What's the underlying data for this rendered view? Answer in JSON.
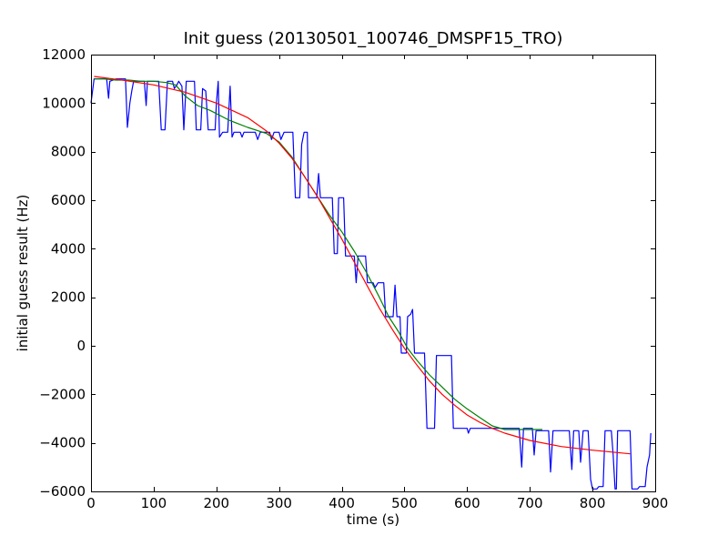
{
  "chart_data": {
    "type": "line",
    "title": "Init guess (20130501_100746_DMSPF15_TRO)",
    "xlabel": "time (s)",
    "ylabel": "initial guess result (Hz)",
    "xlim": [
      0,
      900
    ],
    "ylim": [
      -6000,
      12000
    ],
    "xticks": [
      0,
      100,
      200,
      300,
      400,
      500,
      600,
      700,
      800,
      900
    ],
    "yticks": [
      -6000,
      -4000,
      -2000,
      0,
      2000,
      4000,
      6000,
      8000,
      10000,
      12000
    ],
    "grid": false,
    "series": [
      {
        "color": "#0000ff",
        "points": [
          [
            0,
            10000
          ],
          [
            5,
            11000
          ],
          [
            25,
            11000
          ],
          [
            28,
            10200
          ],
          [
            30,
            10900
          ],
          [
            40,
            11000
          ],
          [
            55,
            11000
          ],
          [
            58,
            9000
          ],
          [
            62,
            10000
          ],
          [
            65,
            10500
          ],
          [
            68,
            10900
          ],
          [
            85,
            10900
          ],
          [
            88,
            9900
          ],
          [
            90,
            10900
          ],
          [
            108,
            10900
          ],
          [
            112,
            8900
          ],
          [
            118,
            8900
          ],
          [
            122,
            10900
          ],
          [
            130,
            10900
          ],
          [
            133,
            10600
          ],
          [
            138,
            10800
          ],
          [
            140,
            10900
          ],
          [
            145,
            10700
          ],
          [
            148,
            8900
          ],
          [
            152,
            10900
          ],
          [
            165,
            10900
          ],
          [
            168,
            8900
          ],
          [
            175,
            8900
          ],
          [
            178,
            10600
          ],
          [
            183,
            10500
          ],
          [
            187,
            8900
          ],
          [
            198,
            8900
          ],
          [
            200,
            10000
          ],
          [
            203,
            10900
          ],
          [
            205,
            8600
          ],
          [
            210,
            8800
          ],
          [
            218,
            8800
          ],
          [
            222,
            10700
          ],
          [
            225,
            8600
          ],
          [
            228,
            8800
          ],
          [
            238,
            8800
          ],
          [
            241,
            8600
          ],
          [
            244,
            8800
          ],
          [
            262,
            8800
          ],
          [
            266,
            8500
          ],
          [
            270,
            8800
          ],
          [
            285,
            8800
          ],
          [
            288,
            8500
          ],
          [
            292,
            8800
          ],
          [
            300,
            8800
          ],
          [
            303,
            8500
          ],
          [
            308,
            8800
          ],
          [
            322,
            8800
          ],
          [
            326,
            6100
          ],
          [
            333,
            6100
          ],
          [
            336,
            8300
          ],
          [
            340,
            8800
          ],
          [
            345,
            8800
          ],
          [
            347,
            6100
          ],
          [
            360,
            6100
          ],
          [
            363,
            7100
          ],
          [
            366,
            6100
          ],
          [
            380,
            6100
          ],
          [
            385,
            6100
          ],
          [
            388,
            3800
          ],
          [
            393,
            3800
          ],
          [
            395,
            6100
          ],
          [
            403,
            6100
          ],
          [
            406,
            3700
          ],
          [
            420,
            3700
          ],
          [
            423,
            2600
          ],
          [
            426,
            3700
          ],
          [
            438,
            3700
          ],
          [
            441,
            2600
          ],
          [
            450,
            2600
          ],
          [
            453,
            2400
          ],
          [
            458,
            2600
          ],
          [
            467,
            2600
          ],
          [
            470,
            1200
          ],
          [
            482,
            1200
          ],
          [
            485,
            2500
          ],
          [
            488,
            1200
          ],
          [
            493,
            1200
          ],
          [
            495,
            -300
          ],
          [
            503,
            -300
          ],
          [
            505,
            1200
          ],
          [
            510,
            1300
          ],
          [
            513,
            1500
          ],
          [
            516,
            -300
          ],
          [
            532,
            -300
          ],
          [
            536,
            -3400
          ],
          [
            548,
            -3400
          ],
          [
            551,
            -400
          ],
          [
            575,
            -400
          ],
          [
            578,
            -3400
          ],
          [
            600,
            -3400
          ],
          [
            602,
            -3600
          ],
          [
            605,
            -3400
          ],
          [
            683,
            -3400
          ],
          [
            687,
            -5000
          ],
          [
            690,
            -3400
          ],
          [
            704,
            -3400
          ],
          [
            707,
            -4500
          ],
          [
            710,
            -3500
          ],
          [
            730,
            -3500
          ],
          [
            733,
            -5200
          ],
          [
            737,
            -3500
          ],
          [
            763,
            -3500
          ],
          [
            767,
            -5100
          ],
          [
            770,
            -3500
          ],
          [
            778,
            -3500
          ],
          [
            781,
            -4800
          ],
          [
            785,
            -3500
          ],
          [
            793,
            -3500
          ],
          [
            797,
            -5500
          ],
          [
            800,
            -5900
          ],
          [
            807,
            -5900
          ],
          [
            810,
            -5800
          ],
          [
            817,
            -5800
          ],
          [
            820,
            -3500
          ],
          [
            830,
            -3500
          ],
          [
            833,
            -4500
          ],
          [
            836,
            -5900
          ],
          [
            838,
            -5900
          ],
          [
            840,
            -3500
          ],
          [
            860,
            -3500
          ],
          [
            863,
            -5900
          ],
          [
            872,
            -5900
          ],
          [
            875,
            -5800
          ],
          [
            884,
            -5800
          ],
          [
            887,
            -5000
          ],
          [
            891,
            -4500
          ],
          [
            893,
            -3600
          ]
        ]
      },
      {
        "color": "#008000",
        "points": [
          [
            5,
            11000
          ],
          [
            20,
            11000
          ],
          [
            40,
            10950
          ],
          [
            60,
            10950
          ],
          [
            80,
            10900
          ],
          [
            100,
            10900
          ],
          [
            120,
            10850
          ],
          [
            135,
            10750
          ],
          [
            150,
            10300
          ],
          [
            170,
            9900
          ],
          [
            190,
            9700
          ],
          [
            220,
            9300
          ],
          [
            250,
            9000
          ],
          [
            280,
            8750
          ],
          [
            300,
            8400
          ],
          [
            320,
            7800
          ],
          [
            340,
            7000
          ],
          [
            360,
            6200
          ],
          [
            380,
            5400
          ],
          [
            400,
            4700
          ],
          [
            420,
            3900
          ],
          [
            440,
            3000
          ],
          [
            460,
            2000
          ],
          [
            475,
            1200
          ],
          [
            490,
            600
          ],
          [
            505,
            -100
          ],
          [
            520,
            -600
          ],
          [
            540,
            -1200
          ],
          [
            560,
            -1700
          ],
          [
            580,
            -2200
          ],
          [
            600,
            -2600
          ],
          [
            620,
            -2950
          ],
          [
            640,
            -3300
          ],
          [
            660,
            -3450
          ],
          [
            720,
            -3450
          ]
        ]
      },
      {
        "color": "#ff0000",
        "points": [
          [
            5,
            11100
          ],
          [
            50,
            10950
          ],
          [
            100,
            10750
          ],
          [
            150,
            10450
          ],
          [
            200,
            10000
          ],
          [
            250,
            9400
          ],
          [
            280,
            8850
          ],
          [
            300,
            8350
          ],
          [
            320,
            7750
          ],
          [
            340,
            7000
          ],
          [
            360,
            6200
          ],
          [
            380,
            5300
          ],
          [
            400,
            4400
          ],
          [
            420,
            3450
          ],
          [
            440,
            2500
          ],
          [
            460,
            1550
          ],
          [
            480,
            700
          ],
          [
            500,
            -100
          ],
          [
            520,
            -800
          ],
          [
            540,
            -1450
          ],
          [
            560,
            -2000
          ],
          [
            580,
            -2450
          ],
          [
            600,
            -2850
          ],
          [
            620,
            -3150
          ],
          [
            640,
            -3400
          ],
          [
            660,
            -3600
          ],
          [
            700,
            -3900
          ],
          [
            750,
            -4150
          ],
          [
            800,
            -4300
          ],
          [
            860,
            -4450
          ]
        ]
      }
    ]
  }
}
